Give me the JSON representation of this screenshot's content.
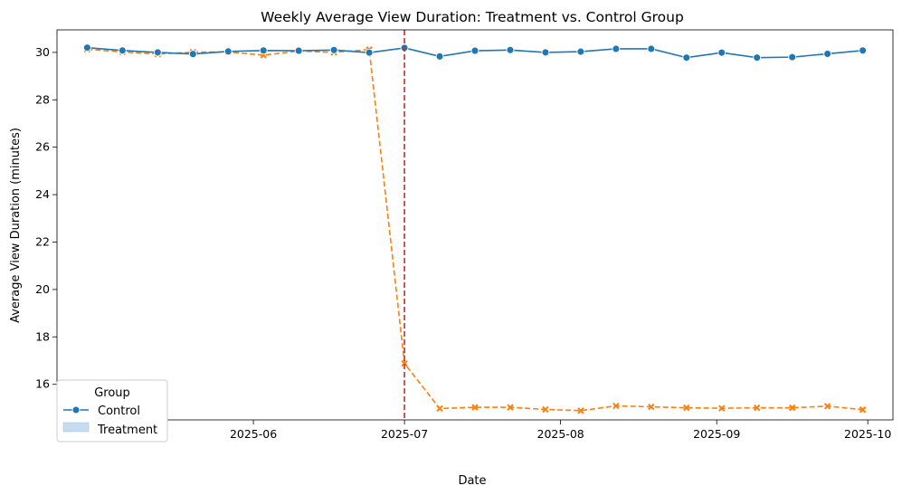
{
  "chart_data": {
    "type": "line",
    "title": "Weekly Average View Duration: Treatment vs. Control Group",
    "xlabel": "Date",
    "ylabel": "Average View Duration (minutes)",
    "x": [
      "2025-04-29",
      "2025-05-06",
      "2025-05-13",
      "2025-05-20",
      "2025-05-27",
      "2025-06-03",
      "2025-06-10",
      "2025-06-17",
      "2025-06-24",
      "2025-07-01",
      "2025-07-08",
      "2025-07-15",
      "2025-07-22",
      "2025-07-29",
      "2025-08-05",
      "2025-08-12",
      "2025-08-19",
      "2025-08-26",
      "2025-09-02",
      "2025-09-09",
      "2025-09-16",
      "2025-09-23",
      "2025-09-30"
    ],
    "xlim": [
      "2025-04-23",
      "2025-10-06"
    ],
    "ylim": [
      14.5,
      30.95
    ],
    "x_ticks": [
      {
        "label": "2025-05",
        "date": "2025-05-01"
      },
      {
        "label": "2025-06",
        "date": "2025-06-01"
      },
      {
        "label": "2025-07",
        "date": "2025-07-01"
      },
      {
        "label": "2025-08",
        "date": "2025-08-01"
      },
      {
        "label": "2025-09",
        "date": "2025-09-01"
      },
      {
        "label": "2025-10",
        "date": "2025-10-01"
      }
    ],
    "y_ticks": [
      16,
      18,
      20,
      22,
      24,
      26,
      28,
      30
    ],
    "grid": false,
    "series": [
      {
        "name": "Control",
        "color": "#1f77b4",
        "marker": "circle",
        "line_style": "solid",
        "x_index_start": 0,
        "values": [
          30.2,
          30.08,
          30.0,
          29.93,
          30.04,
          30.08,
          30.07,
          30.1,
          29.99,
          30.19,
          29.83,
          30.07,
          30.1,
          30.0,
          30.03,
          30.15,
          30.15,
          29.78,
          29.99,
          29.78,
          29.8,
          29.94,
          30.08
        ]
      },
      {
        "name": "",
        "color": "#ff7f0e",
        "marker": "x",
        "line_style": "dashed",
        "x_index_start": 0,
        "values": [
          30.13,
          30.02,
          29.93,
          30.01,
          30.02,
          29.88,
          30.06,
          30.0,
          30.12,
          16.88,
          14.98,
          15.03,
          15.03,
          14.94,
          14.89,
          15.09,
          15.05,
          15.01,
          14.99,
          15.01,
          15.01,
          15.08,
          14.93
        ]
      }
    ],
    "reference_line": {
      "orientation": "vertical",
      "date": "2025-07-01",
      "color": "#d62728",
      "line_style": "dashed"
    },
    "legend": {
      "title": "Group",
      "position": "bottom-left",
      "items": [
        {
          "label": "Control",
          "color": "#1f77b4",
          "symbol": "line-marker"
        },
        {
          "label": "Treatment",
          "color": "#1f77b4",
          "symbol": "band"
        }
      ]
    }
  }
}
